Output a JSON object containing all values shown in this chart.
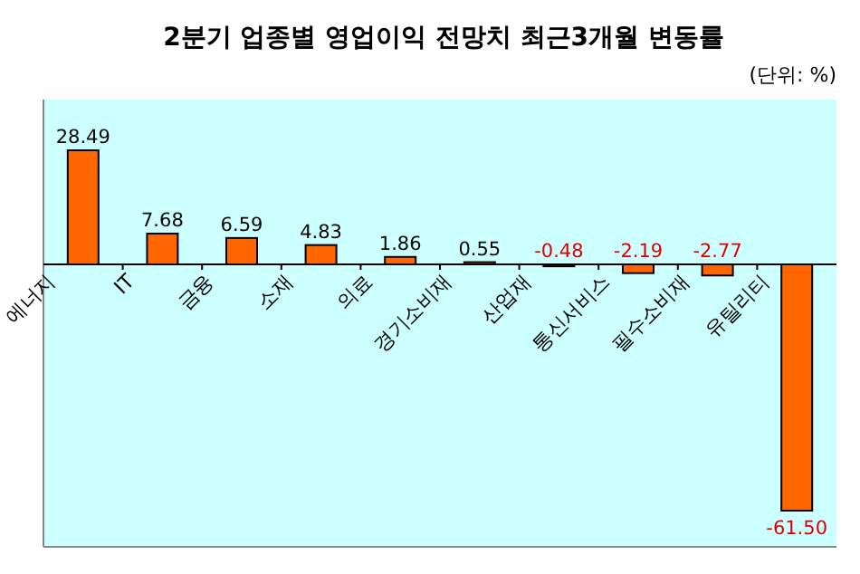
{
  "chart_data": {
    "type": "bar",
    "title": "2분기 업종별 영업이익 전망치 최근3개월 변동률",
    "subtitle": "(단위: %)",
    "categories": [
      "에너지",
      "IT",
      "금융",
      "소재",
      "의료",
      "경기소비재",
      "산업재",
      "통신서비스",
      "필수소비재",
      "유틸리티"
    ],
    "values": [
      28.49,
      7.68,
      6.59,
      4.83,
      1.86,
      0.55,
      -0.48,
      -2.19,
      -2.77,
      -61.5
    ],
    "value_labels": [
      "28.49",
      "7.68",
      "6.59",
      "4.83",
      "1.86",
      "0.55",
      "-0.48",
      "-2.19",
      "-2.77",
      "-61.50"
    ],
    "color": "#ff6600"
  }
}
